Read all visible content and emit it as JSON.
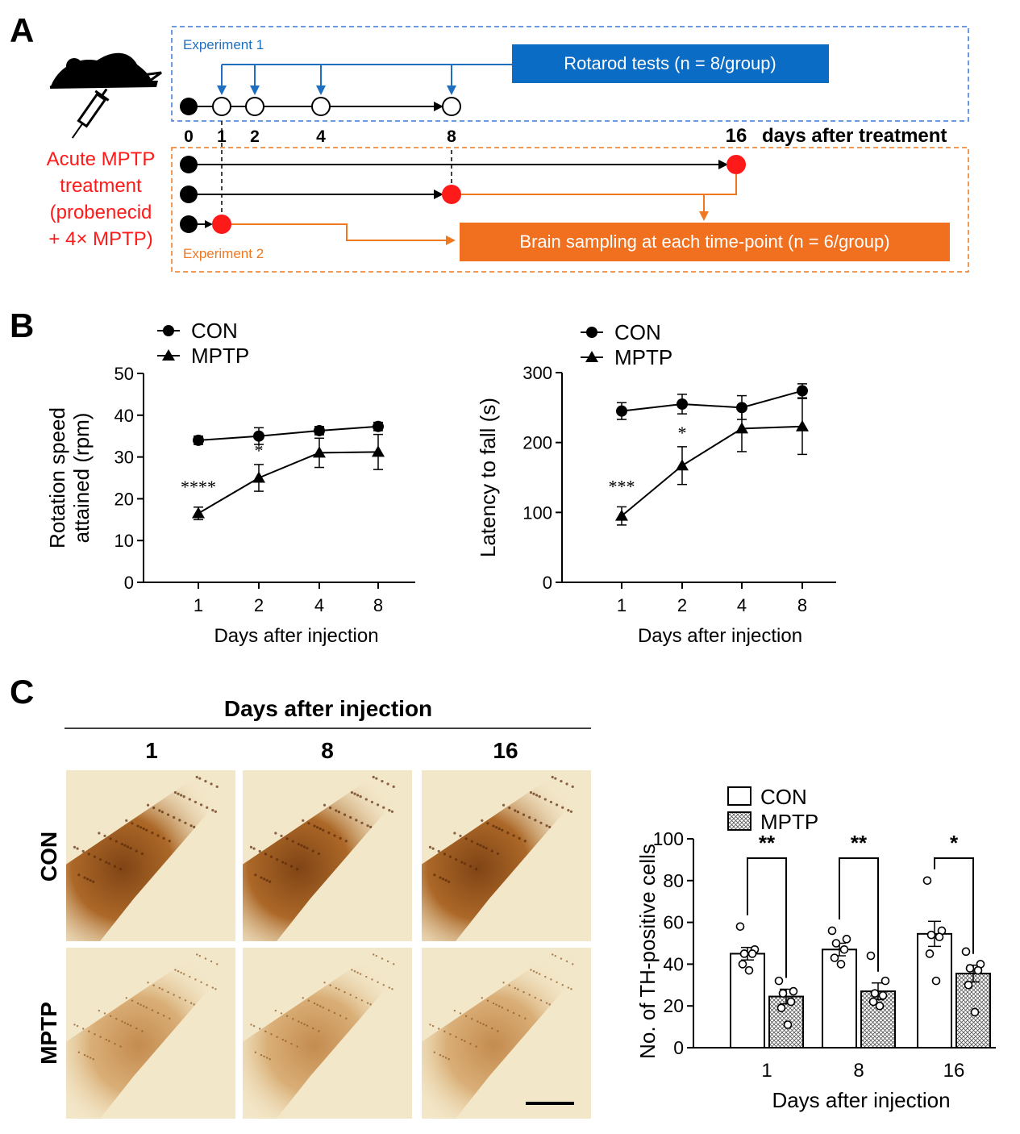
{
  "panel_labels": {
    "a": "A",
    "b": "B",
    "c": "C"
  },
  "colors": {
    "blue": "#1f6fc0",
    "orange": "#f07820",
    "red": "#ff1a1a",
    "black": "#000000",
    "box_blue": "#0a6cc4",
    "box_orange": "#f07020",
    "tissue_bg": "#f3e7c9",
    "tissue_stain": "#8a4a12"
  },
  "panel_a": {
    "exp1_label": "Experiment  1",
    "exp2_label": "Experiment  2",
    "rotarod_box": "Rotarod tests (n = 8/group)",
    "brain_box": "Brain sampling at each time-point (n = 6/group)",
    "day_ticks": [
      "0",
      "1",
      "2",
      "4",
      "8"
    ],
    "day16": "16",
    "axis_caption": "days after treatment",
    "treatment_lines": [
      "Acute MPTP",
      "treatment",
      "(probenecid",
      "+ 4× MPTP)"
    ],
    "icons": [
      "mouse-icon",
      "syringe-icon"
    ]
  },
  "chart_data": [
    {
      "type": "line",
      "title": "",
      "xlabel": "Days after injection",
      "ylabel": "Rotation speed attained (rpm)",
      "ylabel_lines": [
        "Rotation speed",
        "attained (rpm)"
      ],
      "categories": [
        "1",
        "2",
        "4",
        "8"
      ],
      "ylim": [
        0,
        50
      ],
      "yticks": [
        "0",
        "10",
        "20",
        "30",
        "40",
        "50"
      ],
      "legend": "top-left",
      "series": [
        {
          "name": "CON",
          "marker": "circle",
          "values": [
            34,
            35,
            36.3,
            37.3
          ],
          "error": [
            1,
            2,
            1,
            1
          ]
        },
        {
          "name": "MPTP",
          "marker": "triangle",
          "values": [
            16.5,
            25,
            31,
            31.2
          ],
          "error": [
            1.5,
            3.2,
            3.5,
            4.2
          ]
        }
      ],
      "annotations": [
        {
          "category": "1",
          "text": "****"
        },
        {
          "category": "2",
          "text": "*"
        }
      ]
    },
    {
      "type": "line",
      "title": "",
      "xlabel": "Days after injection",
      "ylabel": "Latency to fall (s)",
      "ylabel_lines": [
        "Latency to fall (s)"
      ],
      "categories": [
        "1",
        "2",
        "4",
        "8"
      ],
      "ylim": [
        0,
        300
      ],
      "yticks": [
        "0",
        "100",
        "200",
        "300"
      ],
      "legend": "top-left",
      "series": [
        {
          "name": "CON",
          "marker": "circle",
          "values": [
            245,
            255,
            250,
            274
          ],
          "error": [
            12,
            14,
            17,
            10
          ]
        },
        {
          "name": "MPTP",
          "marker": "triangle",
          "values": [
            95,
            167,
            220,
            223
          ],
          "error": [
            13,
            27,
            33,
            40
          ]
        }
      ],
      "annotations": [
        {
          "category": "1",
          "text": "***"
        },
        {
          "category": "2",
          "text": "*"
        }
      ]
    },
    {
      "type": "bar",
      "title": "",
      "xlabel": "Days after injection",
      "ylabel": "No. of TH-positive cells",
      "categories": [
        "1",
        "8",
        "16"
      ],
      "ylim": [
        0,
        100
      ],
      "yticks": [
        "0",
        "20",
        "40",
        "60",
        "80",
        "100"
      ],
      "legend": "top",
      "series": [
        {
          "name": "CON",
          "fill": "white",
          "values": [
            45,
            47,
            54.5
          ],
          "error": [
            3,
            3,
            6
          ],
          "points": [
            [
              58,
              47,
              45,
              45,
              40,
              37
            ],
            [
              56,
              52,
              50,
              47,
              43,
              40
            ],
            [
              80,
              56,
              54,
              53,
              45,
              32
            ]
          ]
        },
        {
          "name": "MPTP",
          "fill": "hatched",
          "values": [
            24.5,
            27,
            35.5
          ],
          "error": [
            3.5,
            4,
            4
          ],
          "points": [
            [
              32,
              27,
              26,
              22,
              19,
              11
            ],
            [
              44,
              32,
              26,
              25,
              22,
              20
            ],
            [
              46,
              40,
              38,
              37,
              30,
              17
            ]
          ]
        }
      ],
      "significance": [
        "**",
        "**",
        "*"
      ]
    }
  ],
  "panel_c": {
    "header": "Days after injection",
    "columns": [
      "1",
      "8",
      "16"
    ],
    "rows": [
      "CON",
      "MPTP"
    ]
  }
}
